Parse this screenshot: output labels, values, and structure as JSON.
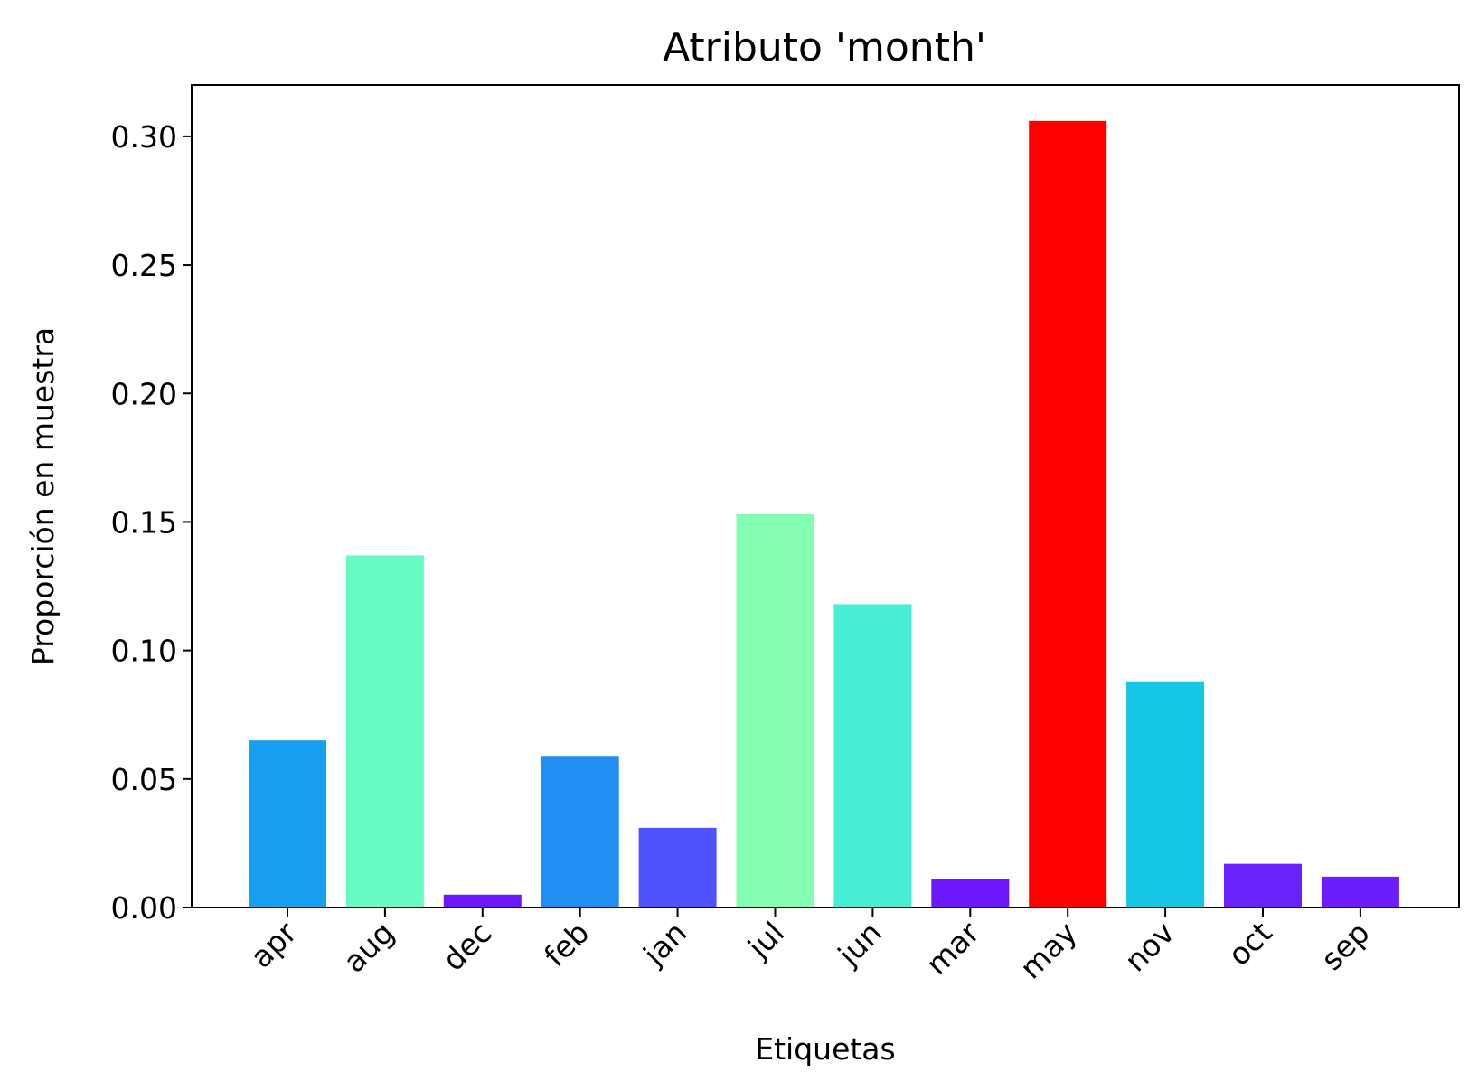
{
  "chart_data": {
    "type": "bar",
    "title": "Atributo 'month'",
    "xlabel": "Etiquetas",
    "ylabel": "Proporción en muestra",
    "categories": [
      "apr",
      "aug",
      "dec",
      "feb",
      "jan",
      "jul",
      "jun",
      "mar",
      "may",
      "nov",
      "oct",
      "sep"
    ],
    "values": [
      0.065,
      0.137,
      0.005,
      0.059,
      0.031,
      0.153,
      0.118,
      0.011,
      0.306,
      0.088,
      0.017,
      0.012
    ],
    "colors": [
      "#179ff0",
      "#67fcc3",
      "#6e16fc",
      "#218ef3",
      "#4f52fd",
      "#83feb2",
      "#47edd4",
      "#6d18fc",
      "#ff0000",
      "#16c7e5",
      "#6a23fc",
      "#6c1dfc"
    ],
    "yticks": [
      "0.00",
      "0.05",
      "0.10",
      "0.15",
      "0.20",
      "0.25",
      "0.30"
    ],
    "ylim": [
      0,
      0.32
    ],
    "grid": false,
    "legend": "none"
  }
}
